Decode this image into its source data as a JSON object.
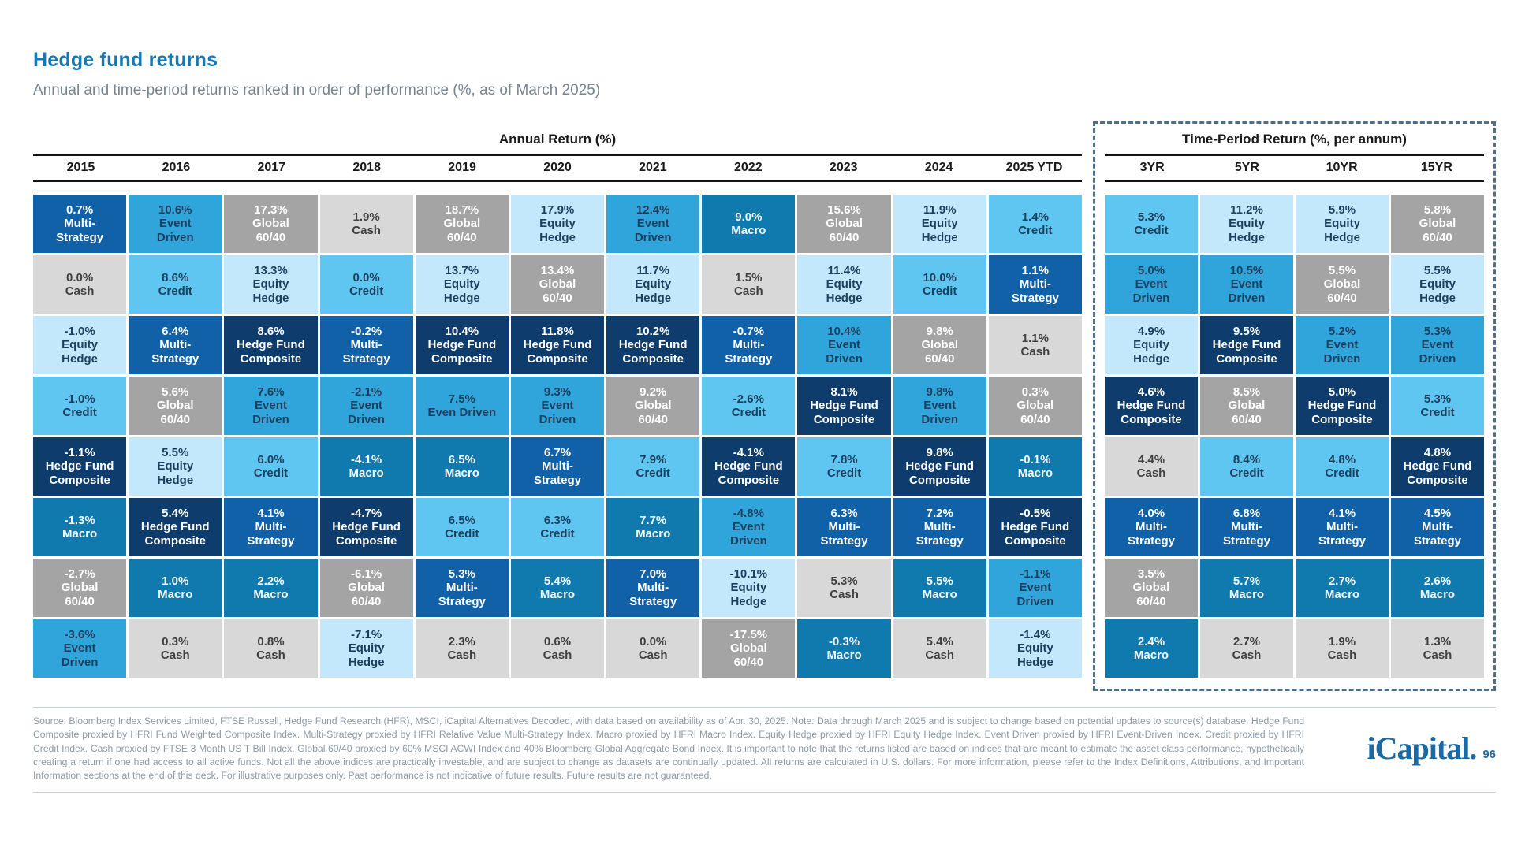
{
  "title": "Hedge fund returns",
  "subtitle": "Annual and time-period returns ranked in order of performance (%, as of March 2025)",
  "sections": {
    "annual": {
      "header": "Annual Return (%)"
    },
    "period": {
      "header": "Time-Period Return (%, per annum)"
    }
  },
  "strategies": {
    "multi_strategy": {
      "label": "Multi-Strategy",
      "bg": "#1161a8",
      "text": "#ffffff"
    },
    "hedge_fund_composite": {
      "label": "Hedge Fund Composite",
      "bg": "#0e3d6d",
      "text": "#ffffff"
    },
    "macro": {
      "label": "Macro",
      "bg": "#1079ae",
      "text": "#f2f9fd"
    },
    "event_driven": {
      "label": "Event Driven",
      "bg": "#30a5dc",
      "text": "#1d3f5e"
    },
    "credit": {
      "label": "Credit",
      "bg": "#5ec6f0",
      "text": "#1d3f5e"
    },
    "equity_hedge": {
      "label": "Equity Hedge",
      "bg": "#c3e8fb",
      "text": "#1d3f5e"
    },
    "global_60_40": {
      "label": "Global 60/40",
      "bg": "#a4a4a4",
      "text": "#ffffff"
    },
    "cash": {
      "label": "Cash",
      "bg": "#d8d8d8",
      "text": "#404040"
    }
  },
  "chart_data": {
    "type": "table",
    "rows_ranked_best_to_worst": 8,
    "annual_columns": [
      {
        "label": "2015",
        "cells": [
          [
            "0.7%",
            "multi_strategy"
          ],
          [
            "0.0%",
            "cash"
          ],
          [
            "-1.0%",
            "equity_hedge"
          ],
          [
            "-1.0%",
            "credit"
          ],
          [
            "-1.1%",
            "hedge_fund_composite"
          ],
          [
            "-1.3%",
            "macro"
          ],
          [
            "-2.7%",
            "global_60_40"
          ],
          [
            "-3.6%",
            "event_driven"
          ]
        ]
      },
      {
        "label": "2016",
        "cells": [
          [
            "10.6%",
            "event_driven"
          ],
          [
            "8.6%",
            "credit"
          ],
          [
            "6.4%",
            "multi_strategy"
          ],
          [
            "5.6%",
            "global_60_40"
          ],
          [
            "5.5%",
            "equity_hedge"
          ],
          [
            "5.4%",
            "hedge_fund_composite"
          ],
          [
            "1.0%",
            "macro"
          ],
          [
            "0.3%",
            "cash"
          ]
        ]
      },
      {
        "label": "2017",
        "cells": [
          [
            "17.3%",
            "global_60_40"
          ],
          [
            "13.3%",
            "equity_hedge"
          ],
          [
            "8.6%",
            "hedge_fund_composite"
          ],
          [
            "7.6%",
            "event_driven"
          ],
          [
            "6.0%",
            "credit"
          ],
          [
            "4.1%",
            "multi_strategy"
          ],
          [
            "2.2%",
            "macro"
          ],
          [
            "0.8%",
            "cash"
          ]
        ]
      },
      {
        "label": "2018",
        "cells": [
          [
            "1.9%",
            "cash"
          ],
          [
            "0.0%",
            "credit"
          ],
          [
            "-0.2%",
            "multi_strategy"
          ],
          [
            "-2.1%",
            "event_driven"
          ],
          [
            "-4.1%",
            "macro"
          ],
          [
            "-4.7%",
            "hedge_fund_composite"
          ],
          [
            "-6.1%",
            "global_60_40"
          ],
          [
            "-7.1%",
            "equity_hedge"
          ]
        ]
      },
      {
        "label": "2019",
        "cells": [
          [
            "18.7%",
            "global_60_40"
          ],
          [
            "13.7%",
            "equity_hedge"
          ],
          [
            "10.4%",
            "hedge_fund_composite"
          ],
          [
            "7.5%",
            "event_driven",
            "Even Driven"
          ],
          [
            "6.5%",
            "macro"
          ],
          [
            "6.5%",
            "credit"
          ],
          [
            "5.3%",
            "multi_strategy"
          ],
          [
            "2.3%",
            "cash"
          ]
        ]
      },
      {
        "label": "2020",
        "cells": [
          [
            "17.9%",
            "equity_hedge"
          ],
          [
            "13.4%",
            "global_60_40"
          ],
          [
            "11.8%",
            "hedge_fund_composite"
          ],
          [
            "9.3%",
            "event_driven"
          ],
          [
            "6.7%",
            "multi_strategy"
          ],
          [
            "6.3%",
            "credit"
          ],
          [
            "5.4%",
            "macro"
          ],
          [
            "0.6%",
            "cash"
          ]
        ]
      },
      {
        "label": "2021",
        "cells": [
          [
            "12.4%",
            "event_driven"
          ],
          [
            "11.7%",
            "equity_hedge"
          ],
          [
            "10.2%",
            "hedge_fund_composite"
          ],
          [
            "9.2%",
            "global_60_40"
          ],
          [
            "7.9%",
            "credit"
          ],
          [
            "7.7%",
            "macro"
          ],
          [
            "7.0%",
            "multi_strategy"
          ],
          [
            "0.0%",
            "cash"
          ]
        ]
      },
      {
        "label": "2022",
        "cells": [
          [
            "9.0%",
            "macro"
          ],
          [
            "1.5%",
            "cash"
          ],
          [
            "-0.7%",
            "multi_strategy"
          ],
          [
            "-2.6%",
            "credit"
          ],
          [
            "-4.1%",
            "hedge_fund_composite"
          ],
          [
            "-4.8%",
            "event_driven"
          ],
          [
            "-10.1%",
            "equity_hedge"
          ],
          [
            "-17.5%",
            "global_60_40"
          ]
        ]
      },
      {
        "label": "2023",
        "cells": [
          [
            "15.6%",
            "global_60_40"
          ],
          [
            "11.4%",
            "equity_hedge"
          ],
          [
            "10.4%",
            "event_driven"
          ],
          [
            "8.1%",
            "hedge_fund_composite"
          ],
          [
            "7.8%",
            "credit"
          ],
          [
            "6.3%",
            "multi_strategy"
          ],
          [
            "5.3%",
            "cash"
          ],
          [
            "-0.3%",
            "macro"
          ]
        ]
      },
      {
        "label": "2024",
        "cells": [
          [
            "11.9%",
            "equity_hedge"
          ],
          [
            "10.0%",
            "credit"
          ],
          [
            "9.8%",
            "global_60_40"
          ],
          [
            "9.8%",
            "event_driven"
          ],
          [
            "9.8%",
            "hedge_fund_composite"
          ],
          [
            "7.2%",
            "multi_strategy"
          ],
          [
            "5.5%",
            "macro"
          ],
          [
            "5.4%",
            "cash"
          ]
        ]
      },
      {
        "label": "2025 YTD",
        "cells": [
          [
            "1.4%",
            "credit"
          ],
          [
            "1.1%",
            "multi_strategy"
          ],
          [
            "1.1%",
            "cash"
          ],
          [
            "0.3%",
            "global_60_40"
          ],
          [
            "-0.1%",
            "macro"
          ],
          [
            "-0.5%",
            "hedge_fund_composite"
          ],
          [
            "-1.1%",
            "event_driven"
          ],
          [
            "-1.4%",
            "equity_hedge"
          ]
        ]
      }
    ],
    "period_columns": [
      {
        "label": "3YR",
        "cells": [
          [
            "5.3%",
            "credit"
          ],
          [
            "5.0%",
            "event_driven"
          ],
          [
            "4.9%",
            "equity_hedge"
          ],
          [
            "4.6%",
            "hedge_fund_composite"
          ],
          [
            "4.4%",
            "cash"
          ],
          [
            "4.0%",
            "multi_strategy"
          ],
          [
            "3.5%",
            "global_60_40"
          ],
          [
            "2.4%",
            "macro"
          ]
        ]
      },
      {
        "label": "5YR",
        "cells": [
          [
            "11.2%",
            "equity_hedge"
          ],
          [
            "10.5%",
            "event_driven"
          ],
          [
            "9.5%",
            "hedge_fund_composite"
          ],
          [
            "8.5%",
            "global_60_40"
          ],
          [
            "8.4%",
            "credit"
          ],
          [
            "6.8%",
            "multi_strategy"
          ],
          [
            "5.7%",
            "macro"
          ],
          [
            "2.7%",
            "cash"
          ]
        ]
      },
      {
        "label": "10YR",
        "cells": [
          [
            "5.9%",
            "equity_hedge"
          ],
          [
            "5.5%",
            "global_60_40"
          ],
          [
            "5.2%",
            "event_driven"
          ],
          [
            "5.0%",
            "hedge_fund_composite"
          ],
          [
            "4.8%",
            "credit"
          ],
          [
            "4.1%",
            "multi_strategy"
          ],
          [
            "2.7%",
            "macro"
          ],
          [
            "1.9%",
            "cash"
          ]
        ]
      },
      {
        "label": "15YR",
        "cells": [
          [
            "5.8%",
            "global_60_40"
          ],
          [
            "5.5%",
            "equity_hedge"
          ],
          [
            "5.3%",
            "event_driven"
          ],
          [
            "5.3%",
            "credit"
          ],
          [
            "4.8%",
            "hedge_fund_composite"
          ],
          [
            "4.5%",
            "multi_strategy"
          ],
          [
            "2.6%",
            "macro"
          ],
          [
            "1.3%",
            "cash"
          ]
        ]
      }
    ]
  },
  "footer": {
    "text": "Source: Bloomberg Index Services Limited, FTSE Russell, Hedge Fund Research (HFR), MSCI, iCapital Alternatives Decoded, with data based on availability as of Apr. 30, 2025. Note: Data through March 2025 and is subject to change based on potential updates to source(s) database. Hedge Fund Composite proxied by HFRI Fund Weighted Composite Index. Multi-Strategy proxied by HFRI Relative Value Multi-Strategy Index. Macro proxied by HFRI Macro Index. Equity Hedge proxied by HFRI Equity Hedge Index. Event Driven proxied by HFRI Event-Driven Index. Credit proxied by HFRI Credit Index. Cash proxied by FTSE 3 Month US T Bill Index. Global 60/40 proxied by 60% MSCI ACWI Index and 40% Bloomberg Global Aggregate Bond Index. It is important to note that the returns listed are based on indices that are meant to estimate the asset class performance, hypothetically creating a return if one had access to all active funds. Not all the above indices are practically investable, and are subject to change as datasets are continually updated. All returns are calculated in U.S. dollars. For more information, please refer to the Index Definitions, Attributions, and Important Information sections at the end of this deck. For illustrative purposes only. Past performance is not indicative of future results. Future results are not guaranteed."
  },
  "logo": {
    "text": "iCapital",
    "dot": ".",
    "page_number": "96"
  }
}
